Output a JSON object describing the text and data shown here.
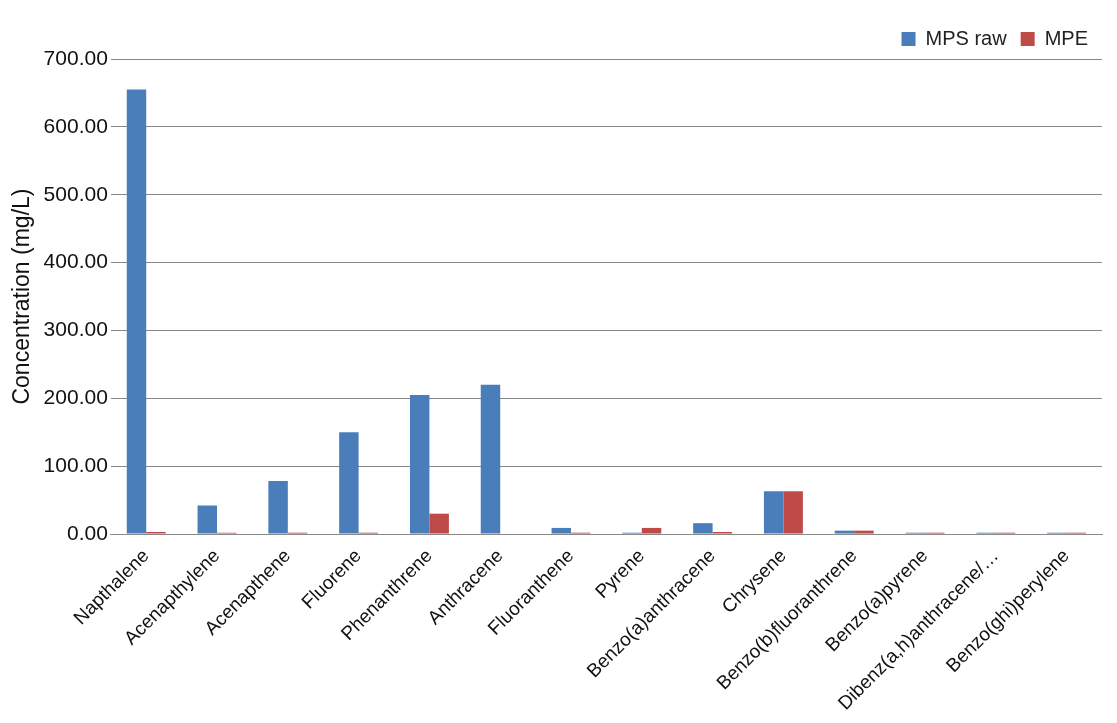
{
  "chart_data": {
    "type": "bar",
    "ylabel": "Concentration (mg/L)",
    "categories": [
      "Napthalene",
      "Acenapthylene",
      "Acenapthene",
      "Fluorene",
      "Phenanthrene",
      "Anthracene",
      "Fluoranthene",
      "Pyrene",
      "Benzo(a)anthracene",
      "Chrysene",
      "Benzo(b)fluoranthrene",
      "Benzo(a)pyrene",
      "Dibenz(a,h)anthracene/…",
      "Benzo(ghi)perylene"
    ],
    "series": [
      {
        "name": "MPS raw",
        "color": "#4a7ebb",
        "values": [
          655,
          42,
          78,
          150,
          205,
          220,
          9,
          2,
          16,
          63,
          5,
          2,
          2,
          2
        ]
      },
      {
        "name": "MPE",
        "color": "#be4b48",
        "values": [
          3,
          2,
          2,
          2,
          30,
          0,
          2,
          9,
          3,
          63,
          5,
          2,
          2,
          2
        ]
      }
    ],
    "ylim": [
      0,
      700
    ],
    "yticks": [
      {
        "value": 0,
        "label": "0.00"
      },
      {
        "value": 100,
        "label": "100.00"
      },
      {
        "value": 200,
        "label": "200.00"
      },
      {
        "value": 300,
        "label": "300.00"
      },
      {
        "value": 400,
        "label": "400.00"
      },
      {
        "value": 500,
        "label": "500.00"
      },
      {
        "value": 600,
        "label": "600.00"
      },
      {
        "value": 700,
        "label": "700.00"
      }
    ],
    "grid": "y",
    "legend": "top right"
  }
}
